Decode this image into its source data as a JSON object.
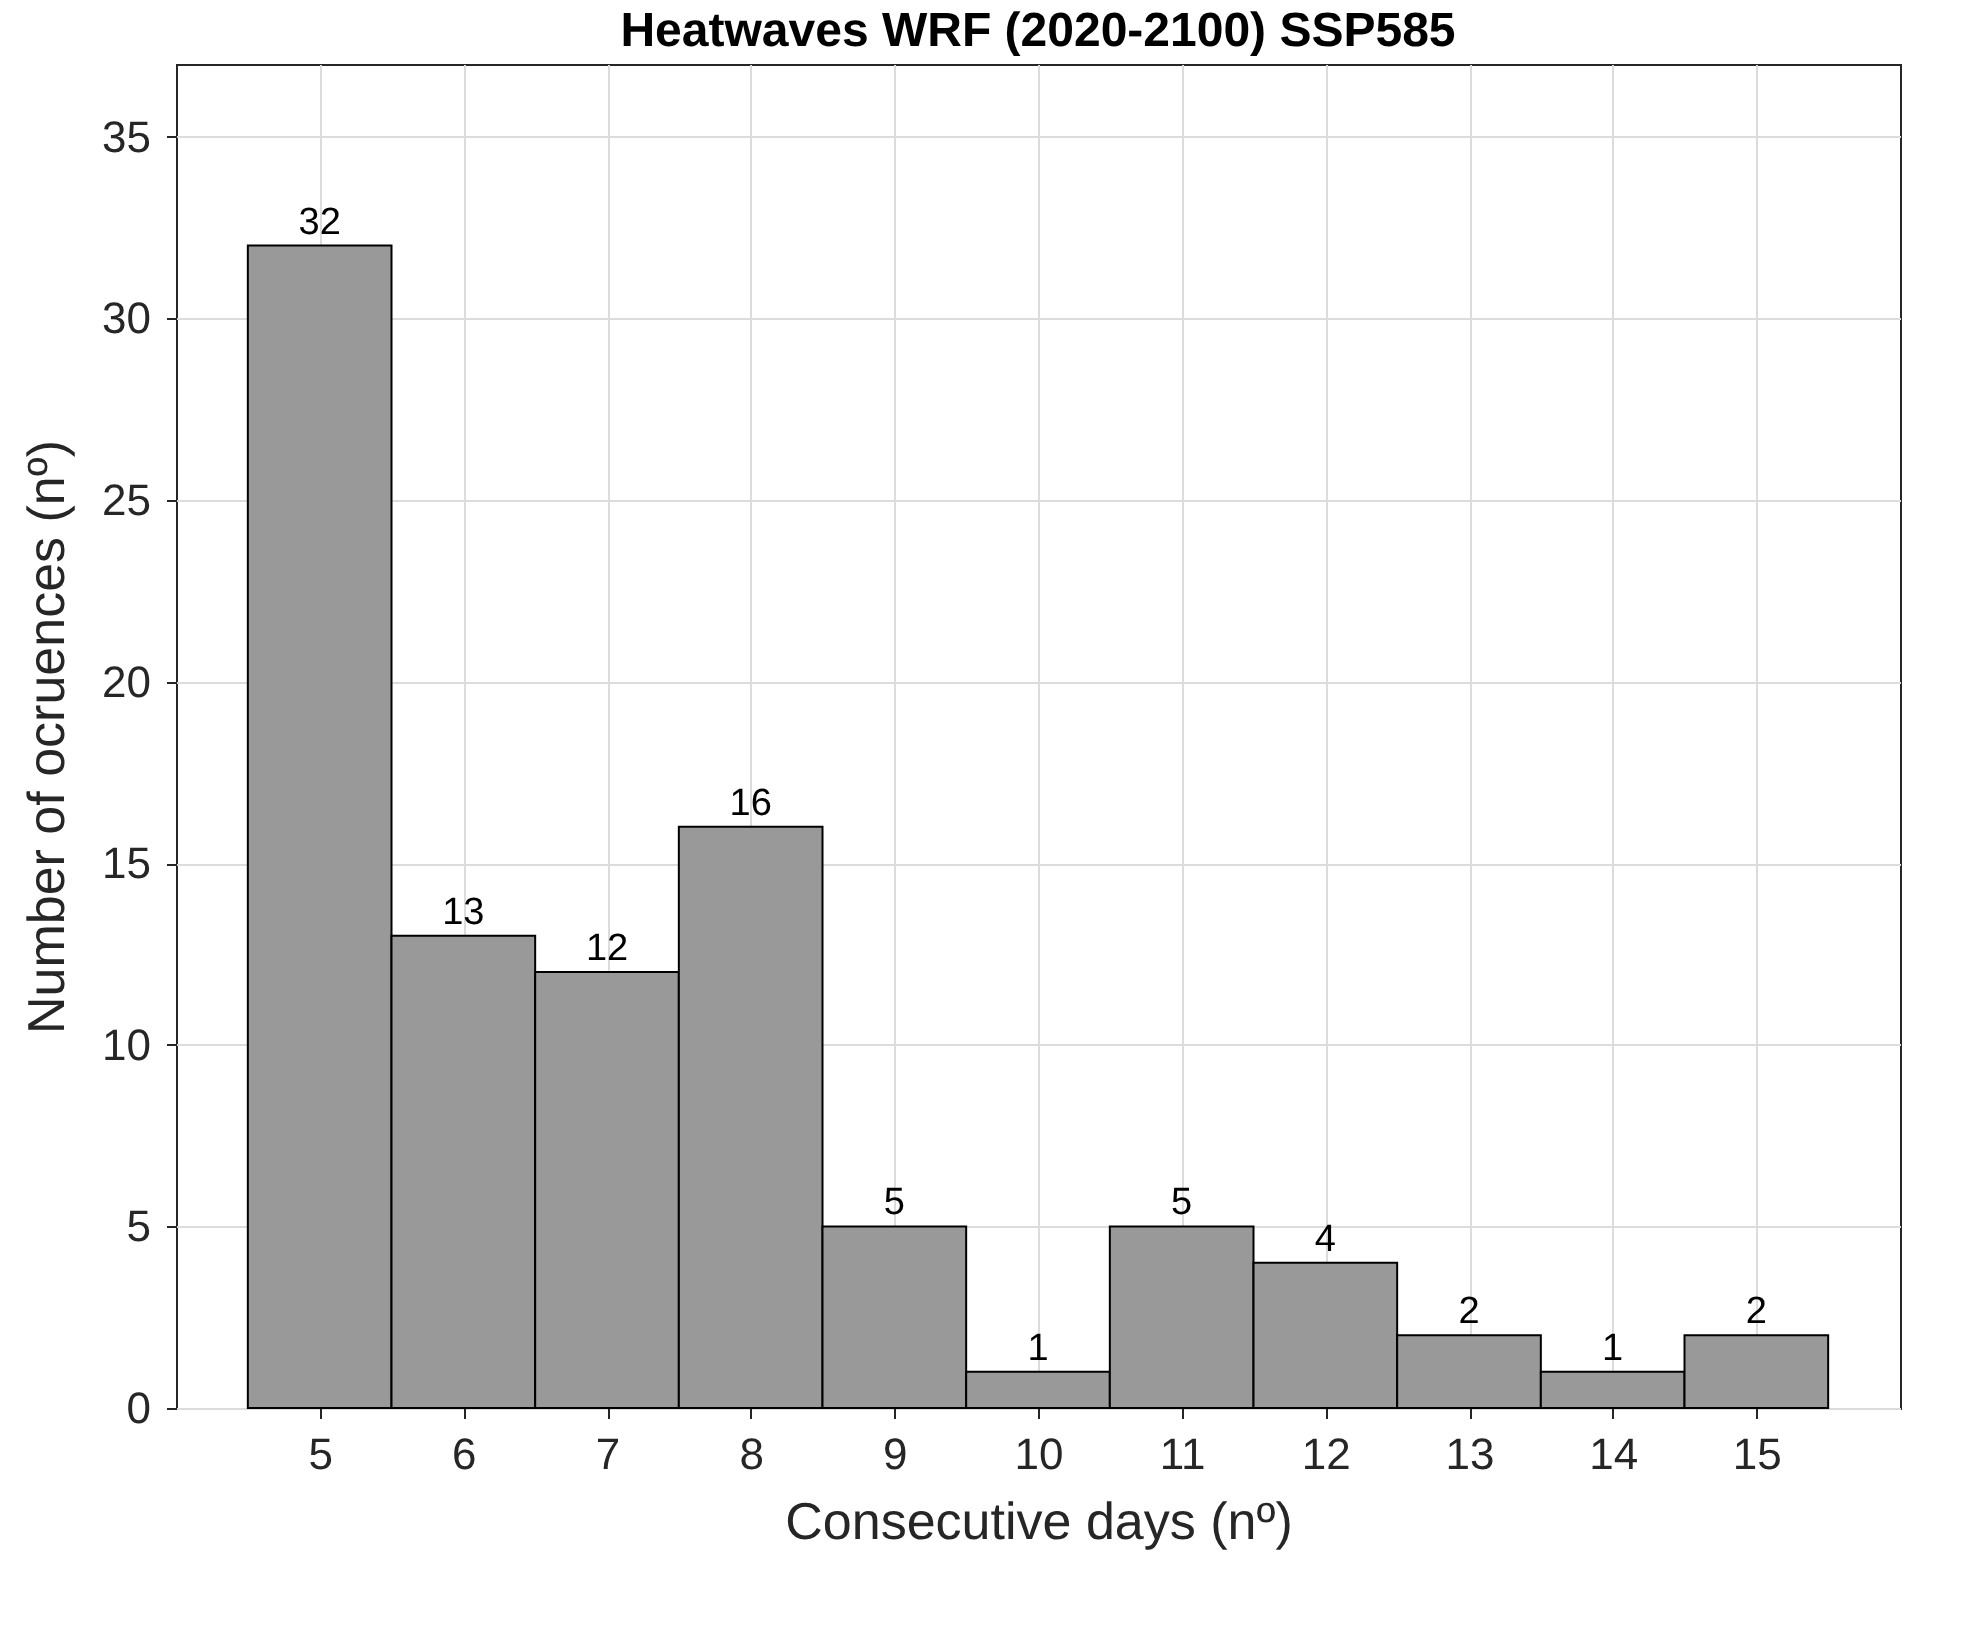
{
  "chart_data": {
    "type": "histogram",
    "title": "Heatwaves WRF (2020-2100) SSP585",
    "xlabel": "Consecutive days (nº)",
    "ylabel": "Number of ocruences (nº)",
    "bins": [
      4.5,
      5.5,
      6.5,
      7.5,
      8.5,
      9.5,
      10.5,
      11.5,
      12.5,
      13.5,
      14.5,
      15.5
    ],
    "values": [
      32,
      13,
      12,
      16,
      5,
      1,
      5,
      4,
      2,
      1,
      2
    ],
    "color": "#999999",
    "xlim": [
      4,
      16
    ],
    "xticks": [
      5,
      6,
      7,
      8,
      9,
      10,
      11,
      12,
      13,
      14,
      15
    ],
    "ylim": [
      0,
      37
    ],
    "yticks": [
      0,
      5,
      10,
      15,
      20,
      25,
      30,
      35
    ],
    "grid": true,
    "data_labels": true
  }
}
